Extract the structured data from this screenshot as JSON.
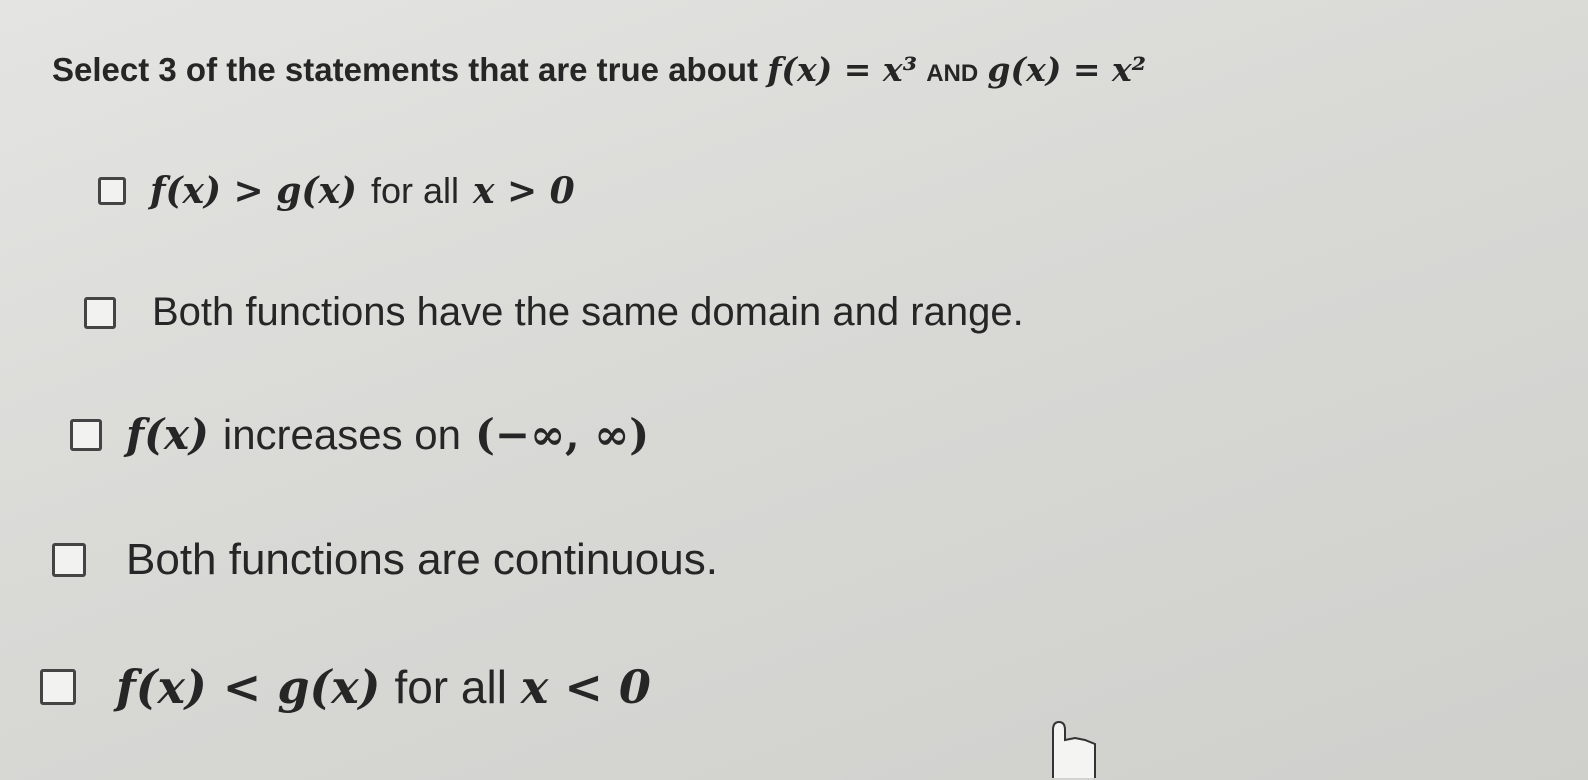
{
  "question": {
    "prefix": "Select 3 of the statements that are true about",
    "f": "f(x) = x³",
    "and": "AND",
    "g": "g(x) = x²"
  },
  "options": [
    [
      "f(x) > g(x)",
      "for all",
      "x > 0"
    ],
    [
      "Both functions have the same domain and range."
    ],
    [
      "f(x)",
      "increases on",
      "(−∞, ∞)"
    ],
    [
      "Both functions are continuous."
    ],
    [
      "f(x) < g(x)",
      "for all",
      "x < 0"
    ]
  ]
}
